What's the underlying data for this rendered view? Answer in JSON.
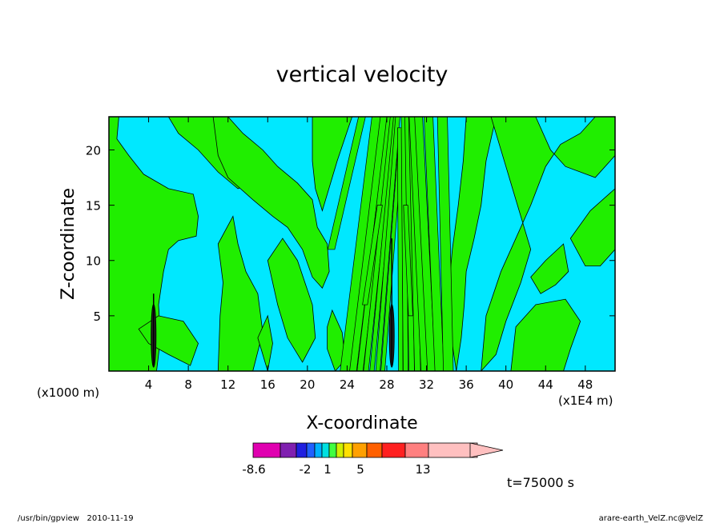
{
  "chart_data": {
    "type": "heatmap",
    "title": "vertical velocity",
    "xlabel": "X-coordinate",
    "ylabel": "Z-coordinate",
    "x_unit_left": "(x1000 m)",
    "x_unit_right": "(x1E4 m)",
    "x_ticks": [
      4,
      8,
      12,
      16,
      20,
      24,
      28,
      32,
      36,
      40,
      44,
      48
    ],
    "y_ticks": [
      5,
      10,
      15,
      20
    ],
    "xlim": [
      0,
      51
    ],
    "ylim": [
      0,
      23
    ],
    "time_label": "t=75000 s",
    "colorbar": {
      "colors": [
        "#e000b0",
        "#8020b0",
        "#2020e0",
        "#2060ff",
        "#00b0ff",
        "#00e0e0",
        "#40ff40",
        "#d0f000",
        "#ffe000",
        "#ffa000",
        "#ff6000",
        "#ff2020",
        "#ff8080",
        "#ffc0c0"
      ],
      "labels": [
        "-8.6",
        "-2",
        "1",
        "5",
        "13"
      ]
    },
    "field": {
      "negative_color": "#00e8ff",
      "positive_color": "#20ee00",
      "strong_updraft_x": [
        4.5,
        28.5
      ]
    }
  },
  "footer": {
    "left": "/usr/bin/gpview   2010-11-19",
    "right": "arare-earth_VelZ.nc@VelZ"
  }
}
